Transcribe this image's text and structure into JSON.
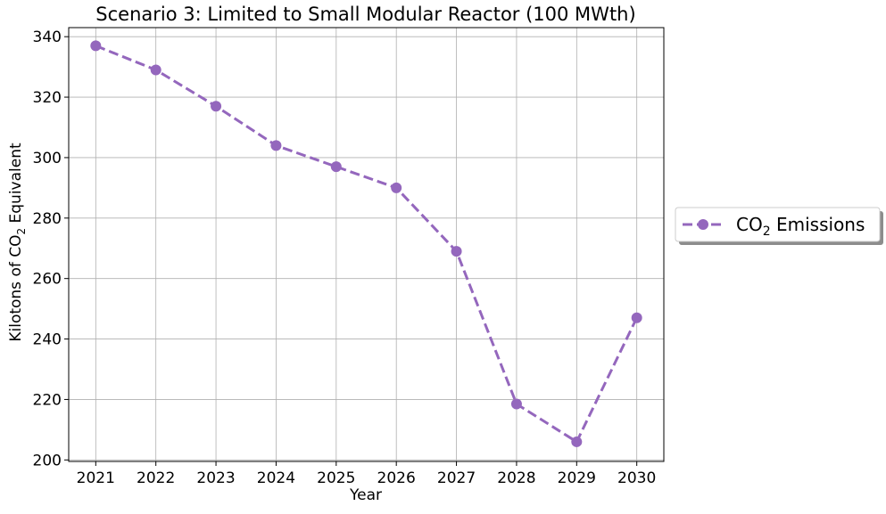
{
  "chart_data": {
    "type": "line",
    "title": "Scenario 3: Limited to Small Modular Reactor (100 MWth)",
    "xlabel": "Year",
    "ylabel": {
      "prefix": "Kilotons of CO",
      "subscript": "2",
      "suffix": " Equivalent"
    },
    "x": [
      2021,
      2022,
      2023,
      2024,
      2025,
      2026,
      2027,
      2028,
      2029,
      2030
    ],
    "series": [
      {
        "name": {
          "prefix": "CO",
          "subscript": "2",
          "suffix": " Emissions"
        },
        "values": [
          337,
          329,
          317,
          304,
          297,
          290,
          269,
          218.5,
          206,
          247
        ],
        "color": "#9467bd",
        "line_style": "dashed",
        "marker": "circle"
      }
    ],
    "xlim": [
      2020.55,
      2030.45
    ],
    "ylim": [
      199.5,
      343
    ],
    "yticks": [
      200,
      220,
      240,
      260,
      280,
      300,
      320,
      340
    ],
    "grid": true,
    "legend_position": "outside-right"
  }
}
